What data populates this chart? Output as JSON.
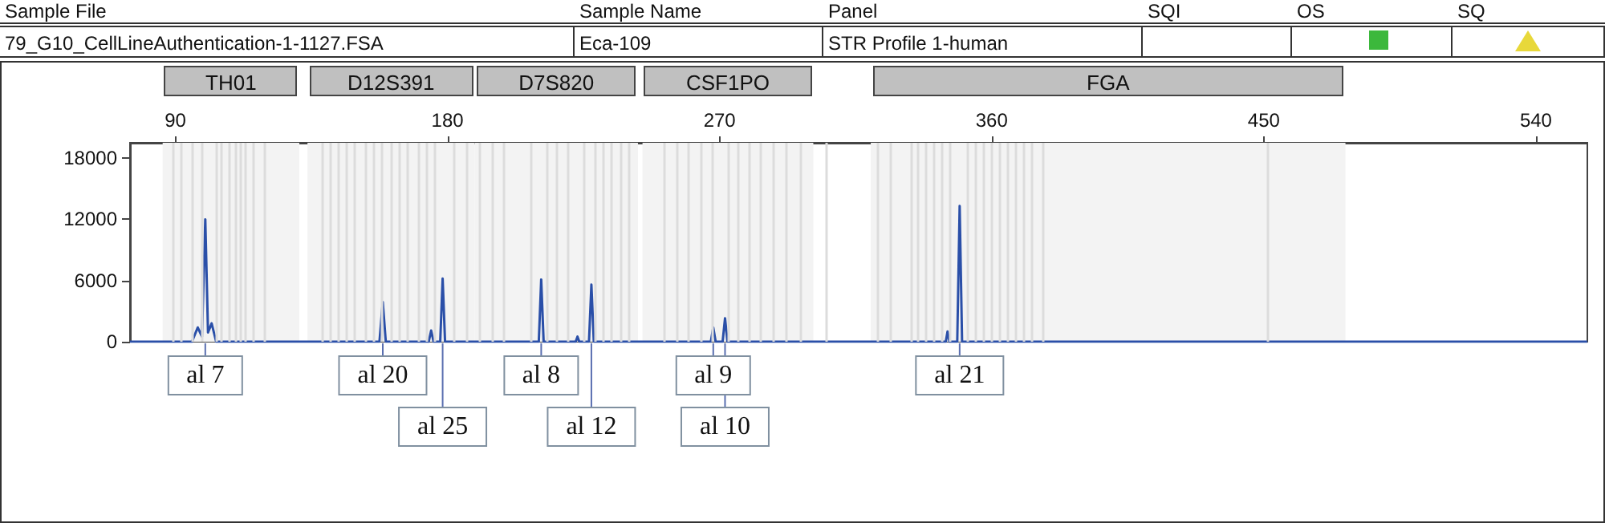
{
  "chart_data": {
    "type": "line",
    "marker": "none",
    "line_style": "solid",
    "annotations": [
      "Sample File",
      "Sample Name",
      "Panel",
      "SQI",
      "OS",
      "SQ",
      "79_G10_CellLineAuthentication-1-1127.FSA",
      "Eca-109",
      "STR Profile 1-human",
      {
        "text": "al 7",
        "x": 99.9,
        "y": 0
      },
      {
        "text": "al 20",
        "x": 158.6,
        "y": 0
      },
      {
        "text": "al 25",
        "x": 178.4,
        "y": 0
      },
      {
        "text": "al 8",
        "x": 211,
        "y": 0
      },
      {
        "text": "al 12",
        "x": 227.6,
        "y": 0
      },
      {
        "text": "al 9",
        "x": 267.9,
        "y": 0
      },
      {
        "text": "al 10",
        "x": 271.8,
        "y": 0
      },
      {
        "text": "al 21",
        "x": 349.4,
        "y": 0
      }
    ],
    "xlim": [
      75,
      557
    ],
    "xticks": [
      90,
      180,
      270,
      360,
      450,
      540
    ],
    "ylim": [
      0,
      19500
    ],
    "yticks": [
      0,
      6000,
      12000,
      18000
    ],
    "series": [
      {
        "color": "#2a4fa8",
        "x": [
          75,
          95.5,
          97.4,
          98.8,
          99.9,
          100.8,
          102,
          103.5,
          157.5,
          158.6,
          159.6,
          173.8,
          174.6,
          175.4,
          177.6,
          178.4,
          179.2,
          210.2,
          211,
          211.8,
          222.4,
          223,
          223.6,
          226.8,
          227.6,
          228.4,
          267.1,
          267.9,
          268.7,
          271,
          271.8,
          272.6,
          344.8,
          345.4,
          346,
          348.6,
          349.4,
          350.2,
          557
        ],
        "values": [
          0,
          0,
          1400,
          500,
          12000,
          900,
          1800,
          0,
          0,
          3900,
          0,
          0,
          1100,
          0,
          0,
          6200,
          0,
          0,
          6100,
          0,
          0,
          500,
          0,
          0,
          5600,
          0,
          0,
          1400,
          0,
          0,
          2300,
          0,
          0,
          1000,
          0,
          0,
          13300,
          0,
          0
        ]
      }
    ],
    "bands": [
      {
        "axis": "x",
        "from": 85.8,
        "to": 131,
        "label": "TH01",
        "color": "#f3f3f3"
      },
      {
        "axis": "x",
        "from": 133.7,
        "to": 189,
        "label": "D12S391",
        "color": "#f3f3f3"
      },
      {
        "axis": "x",
        "from": 189,
        "to": 243,
        "label": "D7S820",
        "color": "#f3f3f3"
      },
      {
        "axis": "x",
        "from": 244.5,
        "to": 301,
        "label": "CSF1PO",
        "color": "#f3f3f3"
      },
      {
        "axis": "x",
        "from": 320,
        "to": 477,
        "label": "FGA",
        "color": "#f3f3f3"
      }
    ],
    "ref_lines": [
      {
        "axis": "x",
        "value": 89.3,
        "color": "#dcdcdc"
      },
      {
        "axis": "x",
        "value": 92,
        "color": "#dcdcdc"
      },
      {
        "axis": "x",
        "value": 95.5,
        "color": "#dcdcdc"
      },
      {
        "axis": "x",
        "value": 98.6,
        "color": "#dcdcdc"
      },
      {
        "axis": "x",
        "value": 103.5,
        "color": "#dcdcdc"
      },
      {
        "axis": "x",
        "value": 105.3,
        "color": "#dcdcdc"
      },
      {
        "axis": "x",
        "value": 107.9,
        "color": "#dcdcdc"
      },
      {
        "axis": "x",
        "value": 109.7,
        "color": "#dcdcdc"
      },
      {
        "axis": "x",
        "value": 111.4,
        "color": "#dcdcdc"
      },
      {
        "axis": "x",
        "value": 113.2,
        "color": "#dcdcdc"
      },
      {
        "axis": "x",
        "value": 115.9,
        "color": "#dcdcdc"
      },
      {
        "axis": "x",
        "value": 119.4,
        "color": "#dcdcdc"
      },
      {
        "axis": "x",
        "value": 138.7,
        "color": "#dcdcdc"
      },
      {
        "axis": "x",
        "value": 141.3,
        "color": "#dcdcdc"
      },
      {
        "axis": "x",
        "value": 144,
        "color": "#dcdcdc"
      },
      {
        "axis": "x",
        "value": 146.6,
        "color": "#dcdcdc"
      },
      {
        "axis": "x",
        "value": 149.3,
        "color": "#dcdcdc"
      },
      {
        "axis": "x",
        "value": 152.8,
        "color": "#dcdcdc"
      },
      {
        "axis": "x",
        "value": 155.4,
        "color": "#dcdcdc"
      },
      {
        "axis": "x",
        "value": 158.1,
        "color": "#dcdcdc"
      },
      {
        "axis": "x",
        "value": 161.6,
        "color": "#dcdcdc"
      },
      {
        "axis": "x",
        "value": 164.2,
        "color": "#dcdcdc"
      },
      {
        "axis": "x",
        "value": 166.9,
        "color": "#dcdcdc"
      },
      {
        "axis": "x",
        "value": 170.4,
        "color": "#dcdcdc"
      },
      {
        "axis": "x",
        "value": 173.1,
        "color": "#dcdcdc"
      },
      {
        "axis": "x",
        "value": 175.7,
        "color": "#dcdcdc"
      },
      {
        "axis": "x",
        "value": 181.9,
        "color": "#dcdcdc"
      },
      {
        "axis": "x",
        "value": 186.3,
        "color": "#dcdcdc"
      },
      {
        "axis": "x",
        "value": 190.7,
        "color": "#dcdcdc"
      },
      {
        "axis": "x",
        "value": 195.1,
        "color": "#dcdcdc"
      },
      {
        "axis": "x",
        "value": 198.6,
        "color": "#dcdcdc"
      },
      {
        "axis": "x",
        "value": 207.5,
        "color": "#dcdcdc"
      },
      {
        "axis": "x",
        "value": 212.8,
        "color": "#dcdcdc"
      },
      {
        "axis": "x",
        "value": 216.3,
        "color": "#dcdcdc"
      },
      {
        "axis": "x",
        "value": 219.8,
        "color": "#dcdcdc"
      },
      {
        "axis": "x",
        "value": 225.1,
        "color": "#dcdcdc"
      },
      {
        "axis": "x",
        "value": 228.7,
        "color": "#dcdcdc"
      },
      {
        "axis": "x",
        "value": 231.3,
        "color": "#dcdcdc"
      },
      {
        "axis": "x",
        "value": 234,
        "color": "#dcdcdc"
      },
      {
        "axis": "x",
        "value": 237.5,
        "color": "#dcdcdc"
      },
      {
        "axis": "x",
        "value": 240.1,
        "color": "#dcdcdc"
      },
      {
        "axis": "x",
        "value": 251.5,
        "color": "#dcdcdc"
      },
      {
        "axis": "x",
        "value": 255.9,
        "color": "#dcdcdc"
      },
      {
        "axis": "x",
        "value": 259.4,
        "color": "#dcdcdc"
      },
      {
        "axis": "x",
        "value": 263.9,
        "color": "#dcdcdc"
      },
      {
        "axis": "x",
        "value": 267.4,
        "color": "#dcdcdc"
      },
      {
        "axis": "x",
        "value": 272.7,
        "color": "#dcdcdc"
      },
      {
        "axis": "x",
        "value": 276.2,
        "color": "#dcdcdc"
      },
      {
        "axis": "x",
        "value": 279.8,
        "color": "#dcdcdc"
      },
      {
        "axis": "x",
        "value": 283.3,
        "color": "#dcdcdc"
      },
      {
        "axis": "x",
        "value": 287.7,
        "color": "#dcdcdc"
      },
      {
        "axis": "x",
        "value": 292.1,
        "color": "#dcdcdc"
      },
      {
        "axis": "x",
        "value": 296.5,
        "color": "#dcdcdc"
      },
      {
        "axis": "x",
        "value": 305.4,
        "color": "#dcdcdc"
      },
      {
        "axis": "x",
        "value": 322.1,
        "color": "#dcdcdc"
      },
      {
        "axis": "x",
        "value": 326.5,
        "color": "#dcdcdc"
      },
      {
        "axis": "x",
        "value": 333.5,
        "color": "#dcdcdc"
      },
      {
        "axis": "x",
        "value": 335.3,
        "color": "#dcdcdc"
      },
      {
        "axis": "x",
        "value": 338,
        "color": "#dcdcdc"
      },
      {
        "axis": "x",
        "value": 340.6,
        "color": "#dcdcdc"
      },
      {
        "axis": "x",
        "value": 343.3,
        "color": "#dcdcdc"
      },
      {
        "axis": "x",
        "value": 345.9,
        "color": "#dcdcdc"
      },
      {
        "axis": "x",
        "value": 352.1,
        "color": "#dcdcdc"
      },
      {
        "axis": "x",
        "value": 354.8,
        "color": "#dcdcdc"
      },
      {
        "axis": "x",
        "value": 357.4,
        "color": "#dcdcdc"
      },
      {
        "axis": "x",
        "value": 360,
        "color": "#dcdcdc"
      },
      {
        "axis": "x",
        "value": 362.7,
        "color": "#dcdcdc"
      },
      {
        "axis": "x",
        "value": 365.3,
        "color": "#dcdcdc"
      },
      {
        "axis": "x",
        "value": 368,
        "color": "#dcdcdc"
      },
      {
        "axis": "x",
        "value": 370.6,
        "color": "#dcdcdc"
      },
      {
        "axis": "x",
        "value": 373.3,
        "color": "#dcdcdc"
      },
      {
        "axis": "x",
        "value": 376.8,
        "color": "#dcdcdc"
      },
      {
        "axis": "x",
        "value": 451,
        "color": "#dcdcdc"
      }
    ]
  }
}
